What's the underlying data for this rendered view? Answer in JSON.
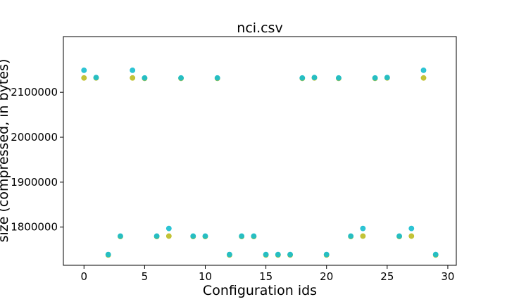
{
  "chart_data": {
    "type": "scatter",
    "title": "nci.csv",
    "xlabel": "Configuration ids",
    "ylabel": "size (compressed, in bytes)",
    "xlim": [
      -1.7,
      30.7
    ],
    "ylim": [
      1715000,
      2224000
    ],
    "xticks": [
      0,
      5,
      10,
      15,
      20,
      25,
      30
    ],
    "yticks": [
      1800000,
      1900000,
      2000000,
      2100000
    ],
    "grid": false,
    "series": [
      {
        "color": "#bcbd22",
        "points": [
          [
            0,
            2132000
          ],
          [
            1,
            2132000
          ],
          [
            2,
            1738000
          ],
          [
            3,
            1779000
          ],
          [
            4,
            2132000
          ],
          [
            5,
            2131000
          ],
          [
            6,
            1779000
          ],
          [
            7,
            1780000
          ],
          [
            8,
            2131000
          ],
          [
            9,
            1779000
          ],
          [
            10,
            1779000
          ],
          [
            11,
            2131000
          ],
          [
            12,
            1738000
          ],
          [
            13,
            1779000
          ],
          [
            14,
            1779000
          ],
          [
            15,
            1738000
          ],
          [
            16,
            1738000
          ],
          [
            17,
            1738000
          ],
          [
            18,
            2131000
          ],
          [
            19,
            2132000
          ],
          [
            20,
            1738000
          ],
          [
            21,
            2131000
          ],
          [
            22,
            1779000
          ],
          [
            23,
            1780000
          ],
          [
            24,
            2131000
          ],
          [
            25,
            2132000
          ],
          [
            26,
            1779000
          ],
          [
            27,
            1780000
          ],
          [
            28,
            2132000
          ],
          [
            29,
            1738000
          ]
        ]
      },
      {
        "color": "#17becf",
        "points": [
          [
            0,
            2149000
          ],
          [
            1,
            2133000
          ],
          [
            2,
            1739000
          ],
          [
            3,
            1780000
          ],
          [
            4,
            2149000
          ],
          [
            5,
            2132000
          ],
          [
            6,
            1780000
          ],
          [
            7,
            1797000
          ],
          [
            8,
            2132000
          ],
          [
            9,
            1780000
          ],
          [
            10,
            1780000
          ],
          [
            11,
            2132000
          ],
          [
            12,
            1739000
          ],
          [
            13,
            1780000
          ],
          [
            14,
            1780000
          ],
          [
            15,
            1739000
          ],
          [
            16,
            1739000
          ],
          [
            17,
            1739000
          ],
          [
            18,
            2132000
          ],
          [
            19,
            2133000
          ],
          [
            20,
            1739000
          ],
          [
            21,
            2132000
          ],
          [
            22,
            1780000
          ],
          [
            23,
            1797000
          ],
          [
            24,
            2132000
          ],
          [
            25,
            2133000
          ],
          [
            26,
            1780000
          ],
          [
            27,
            1797000
          ],
          [
            28,
            2149000
          ],
          [
            29,
            1739000
          ]
        ]
      }
    ]
  }
}
